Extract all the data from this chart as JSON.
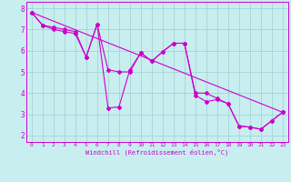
{
  "xlabel": "Windchill (Refroidissement éolien,°C)",
  "xlim": [
    -0.5,
    23.5
  ],
  "ylim": [
    1.7,
    8.3
  ],
  "yticks": [
    2,
    3,
    4,
    5,
    6,
    7,
    8
  ],
  "xticks": [
    0,
    1,
    2,
    3,
    4,
    5,
    6,
    7,
    8,
    9,
    10,
    11,
    12,
    13,
    14,
    15,
    16,
    17,
    18,
    19,
    20,
    21,
    22,
    23
  ],
  "background_color": "#c8eef0",
  "grid_color": "#9ecfcf",
  "line_color": "#cc00cc",
  "line1_x": [
    0,
    1,
    2,
    3,
    4,
    5,
    6,
    7,
    8,
    9,
    10,
    11,
    12,
    13,
    14,
    15,
    16,
    17,
    18,
    19,
    20,
    21,
    22,
    23
  ],
  "line1_y": [
    7.8,
    7.2,
    7.1,
    7.0,
    6.9,
    5.7,
    7.25,
    3.3,
    3.35,
    5.1,
    5.9,
    5.5,
    5.95,
    6.35,
    6.35,
    3.9,
    3.6,
    3.7,
    3.5,
    2.45,
    2.4,
    2.3,
    2.7,
    3.1
  ],
  "line2_x": [
    0,
    1,
    2,
    3,
    4,
    5,
    6,
    7,
    8,
    9,
    10,
    11,
    12,
    13,
    14,
    15,
    16,
    17,
    18,
    19,
    20,
    21,
    22,
    23
  ],
  "line2_y": [
    7.8,
    7.2,
    7.0,
    6.9,
    6.8,
    5.7,
    7.25,
    5.1,
    5.0,
    5.0,
    5.9,
    5.5,
    5.95,
    6.35,
    6.35,
    4.0,
    4.0,
    3.75,
    3.5,
    2.45,
    2.4,
    2.3,
    2.7,
    3.1
  ],
  "line3_x": [
    0,
    23
  ],
  "line3_y": [
    7.8,
    3.1
  ],
  "markersize": 2.0,
  "linewidth": 0.8
}
